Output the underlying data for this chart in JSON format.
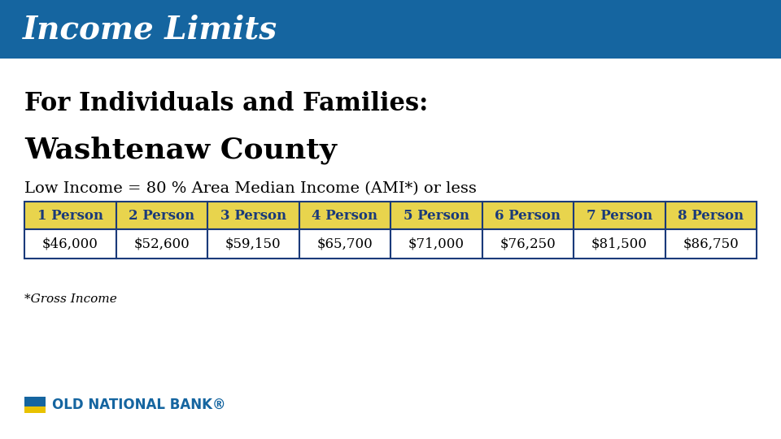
{
  "header_bg": "#1565a0",
  "header_text": "Income Limits",
  "header_text_color": "#ffffff",
  "body_bg": "#ffffff",
  "line1": "For Individuals and Families:",
  "line2": "Washtenaw County",
  "line3": "Low Income = 80 % Area Median Income (AMI*) or less",
  "table_headers": [
    "1 Person",
    "2 Person",
    "3 Person",
    "4 Person",
    "5 Person",
    "6 Person",
    "7 Person",
    "8 Person"
  ],
  "table_values": [
    "$46,000",
    "$52,600",
    "$59,150",
    "$65,700",
    "$71,000",
    "$76,250",
    "$81,500",
    "$86,750"
  ],
  "table_header_bg": "#e8d44d",
  "table_header_text_color": "#1a3a7a",
  "table_border_color": "#1a3a7a",
  "table_value_text_color": "#000000",
  "footnote": "*Gross Income",
  "logo_text": "OLD NATIONAL BANK",
  "logo_blue": "#1565a0",
  "logo_yellow": "#e8c200"
}
